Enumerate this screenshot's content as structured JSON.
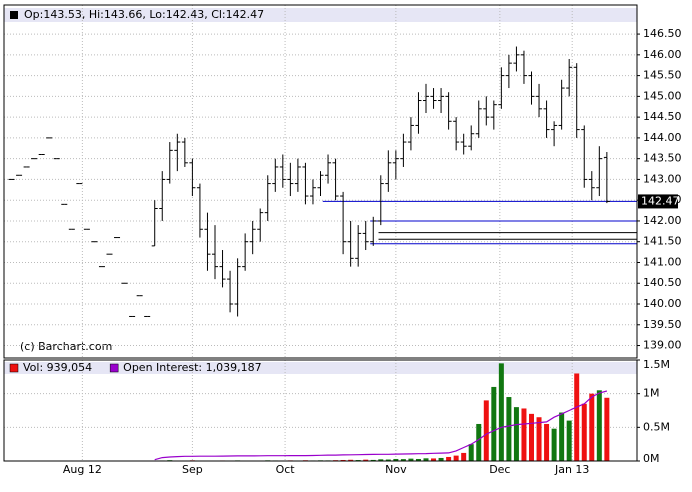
{
  "chart_data": {
    "type": "ohlc",
    "legend_text": "Op:143.53, Hi:143.66, Lo:142.43, Cl:142.47",
    "credit": "(c) Barchart.com",
    "xlim": [
      -1,
      83
    ],
    "xticks": [
      {
        "value": 9.4,
        "label": "Aug 12"
      },
      {
        "value": 24,
        "label": "Sep"
      },
      {
        "value": 36.3,
        "label": "Oct"
      },
      {
        "value": 51,
        "label": "Nov"
      },
      {
        "value": 64.8,
        "label": "Dec"
      },
      {
        "value": 74.4,
        "label": "Jan 13"
      }
    ],
    "ylim": [
      138.7,
      147.2
    ],
    "yticks": [
      {
        "value": 139,
        "label": "139.00"
      },
      {
        "value": 139.5,
        "label": "139.50"
      },
      {
        "value": 140,
        "label": "140.00"
      },
      {
        "value": 140.5,
        "label": "140.50"
      },
      {
        "value": 141,
        "label": "141.00"
      },
      {
        "value": 141.5,
        "label": "141.50"
      },
      {
        "value": 142,
        "label": "142.00"
      },
      {
        "value": 142.5,
        "label": "142.50"
      },
      {
        "value": 143,
        "label": "143.00"
      },
      {
        "value": 143.5,
        "label": "143.50"
      },
      {
        "value": 144,
        "label": "144.00"
      },
      {
        "value": 144.5,
        "label": "144.50"
      },
      {
        "value": 145,
        "label": "145.00"
      },
      {
        "value": 145.5,
        "label": "145.50"
      },
      {
        "value": 146,
        "label": "146.00"
      },
      {
        "value": 146.5,
        "label": "146.50"
      }
    ],
    "grid": true,
    "color": "#000000",
    "open": [
      143,
      143.1,
      143.3,
      143.5,
      143.6,
      144,
      143.5,
      142.4,
      141.8,
      142.9,
      141.8,
      141.5,
      140.9,
      141.2,
      141.6,
      140.5,
      139.7,
      140.2,
      139.7,
      141.4,
      142.3,
      143,
      143.7,
      143.9,
      143.4,
      142.8,
      141.8,
      141.2,
      140.9,
      140.6,
      140,
      140.9,
      141.5,
      141.8,
      142.2,
      142.9,
      143.3,
      143,
      142.9,
      143.3,
      142.6,
      142.8,
      143.1,
      143.4,
      142.6,
      141.5,
      141.1,
      141.7,
      141.5,
      142,
      142.9,
      143.4,
      143.5,
      143.9,
      144.3,
      144.9,
      145,
      144.9,
      145,
      144.4,
      143.9,
      143.8,
      144.1,
      144.7,
      144.5,
      144.8,
      145.5,
      145.8,
      146,
      145.5,
      145,
      144.7,
      144.2,
      144.3,
      145.2,
      145.7,
      144.2,
      143,
      142.8,
      143.53
    ],
    "high": [
      143,
      143.1,
      143.3,
      143.5,
      143.6,
      144,
      143.5,
      142.4,
      141.8,
      142.9,
      141.8,
      141.5,
      140.9,
      141.2,
      141.6,
      140.5,
      139.7,
      140.2,
      139.7,
      142.5,
      143.2,
      143.9,
      144.1,
      144,
      143.5,
      142.9,
      142.2,
      141.9,
      141.3,
      140.8,
      141.1,
      141.7,
      142,
      142.3,
      143.1,
      143.5,
      143.6,
      143.4,
      143.5,
      143.4,
      143,
      143.2,
      143.6,
      143.5,
      142.7,
      142,
      141.9,
      142,
      142.1,
      143.1,
      143.7,
      143.7,
      144.1,
      144.5,
      145.1,
      145.3,
      145.2,
      145.2,
      145.1,
      144.5,
      144.1,
      144.3,
      144.9,
      145,
      144.9,
      145.7,
      146,
      146.2,
      146.1,
      145.6,
      145.3,
      144.9,
      144.4,
      145.4,
      145.9,
      145.8,
      144.3,
      143.2,
      143.8,
      143.66
    ],
    "low": [
      143,
      143.1,
      143.3,
      143.5,
      143.6,
      144,
      143.5,
      142.4,
      141.8,
      142.9,
      141.8,
      141.5,
      140.9,
      141.2,
      141.6,
      140.5,
      139.7,
      140.2,
      139.7,
      141.4,
      142,
      142.9,
      143.2,
      143.3,
      142.6,
      141.6,
      140.8,
      140.6,
      140.4,
      139.8,
      139.7,
      140.8,
      141.2,
      141.5,
      142,
      142.7,
      142.8,
      142.6,
      142.7,
      142.4,
      142.4,
      142.6,
      142.9,
      142.5,
      141.2,
      140.9,
      140.9,
      141.3,
      141.4,
      141.9,
      142.7,
      143,
      143.3,
      143.7,
      144.1,
      144.6,
      144.7,
      144.6,
      144.2,
      143.7,
      143.6,
      143.7,
      144,
      144.3,
      144.2,
      144.7,
      145.2,
      145.6,
      145.3,
      144.8,
      144.5,
      144,
      143.8,
      144.2,
      145,
      144,
      142.8,
      142.5,
      142.6,
      142.43
    ],
    "close": [
      143,
      143.1,
      143.3,
      143.5,
      143.6,
      144,
      143.5,
      142.4,
      141.8,
      142.9,
      141.8,
      141.5,
      140.9,
      141.2,
      141.6,
      140.5,
      139.7,
      140.2,
      139.7,
      142.3,
      143,
      143.7,
      143.9,
      143.4,
      142.8,
      141.8,
      141.2,
      140.9,
      140.6,
      140,
      140.9,
      141.5,
      141.8,
      142.2,
      142.9,
      143.3,
      143,
      142.9,
      143.3,
      142.6,
      142.8,
      143.1,
      143.4,
      142.6,
      141.5,
      141.1,
      141.7,
      141.5,
      142,
      142.9,
      143.4,
      143.5,
      143.9,
      144.3,
      144.9,
      145,
      144.9,
      145,
      144.4,
      143.9,
      143.8,
      144.1,
      144.7,
      144.5,
      144.8,
      145.5,
      145.8,
      146,
      145.5,
      145,
      144.7,
      144.2,
      144.3,
      145.2,
      145.7,
      144.2,
      143,
      142.8,
      143.5,
      142.47
    ],
    "levels": [
      {
        "value": 142.47,
        "label": "142.47",
        "color": "#0000cc",
        "from": 41.3
      },
      {
        "value": 142,
        "color": "#0000cc",
        "from": 47.6
      },
      {
        "value": 141.72,
        "color": "#000000",
        "from": 48.7
      },
      {
        "value": 141.56,
        "color": "#000000",
        "from": 48.7
      },
      {
        "value": 141.45,
        "color": "#0000cc",
        "from": 47.6
      }
    ],
    "volume": {
      "ylim": [
        0,
        1500000
      ],
      "yticks": [
        {
          "value": 0,
          "label": "0M"
        },
        {
          "value": 500000,
          "label": "0.5M"
        },
        {
          "value": 1000000,
          "label": "1M"
        },
        {
          "value": 1500000,
          "label": "1.5M"
        }
      ],
      "up_color": "#117711",
      "down_color": "#ee1111",
      "series": [
        {
          "name": "Vol: 939,054",
          "color": "#ee1111",
          "values": [
            0,
            0,
            0,
            0,
            0,
            0,
            0,
            0,
            0,
            0,
            0,
            0,
            0,
            0,
            0,
            0,
            0,
            0,
            0,
            5000,
            8000,
            12000,
            6000,
            4000,
            10000,
            5000,
            7000,
            6000,
            8000,
            5000,
            9000,
            6000,
            5000,
            7000,
            10000,
            8000,
            6000,
            9000,
            7000,
            11000,
            8000,
            10000,
            9000,
            12000,
            15000,
            18000,
            14000,
            20000,
            16000,
            25000,
            22000,
            30000,
            28000,
            35000,
            30000,
            40000,
            38000,
            45000,
            60000,
            80000,
            120000,
            250000,
            550000,
            900000,
            1100000,
            1450000,
            950000,
            800000,
            780000,
            700000,
            650000,
            550000,
            480000,
            720000,
            600000,
            1300000,
            850000,
            1000000,
            1050000,
            939054
          ]
        },
        {
          "name": "Open Interest: 1,039,187",
          "color": "#9900cc",
          "values": [
            null,
            null,
            null,
            null,
            null,
            null,
            null,
            null,
            null,
            null,
            null,
            null,
            null,
            null,
            null,
            null,
            null,
            null,
            null,
            20000,
            50000,
            60000,
            65000,
            70000,
            70000,
            71000,
            72000,
            72000,
            73000,
            74000,
            75000,
            75000,
            76000,
            77000,
            78000,
            78000,
            79000,
            80000,
            80000,
            80000,
            82000,
            85000,
            87000,
            88000,
            90000,
            92000,
            94000,
            96000,
            98000,
            100000,
            100000,
            102000,
            104000,
            106000,
            108000,
            110000,
            114000,
            118000,
            120000,
            150000,
            200000,
            250000,
            320000,
            400000,
            450000,
            500000,
            520000,
            540000,
            550000,
            560000,
            570000,
            580000,
            650000,
            700000,
            750000,
            800000,
            850000,
            950000,
            1010000,
            1039187
          ]
        }
      ]
    }
  }
}
